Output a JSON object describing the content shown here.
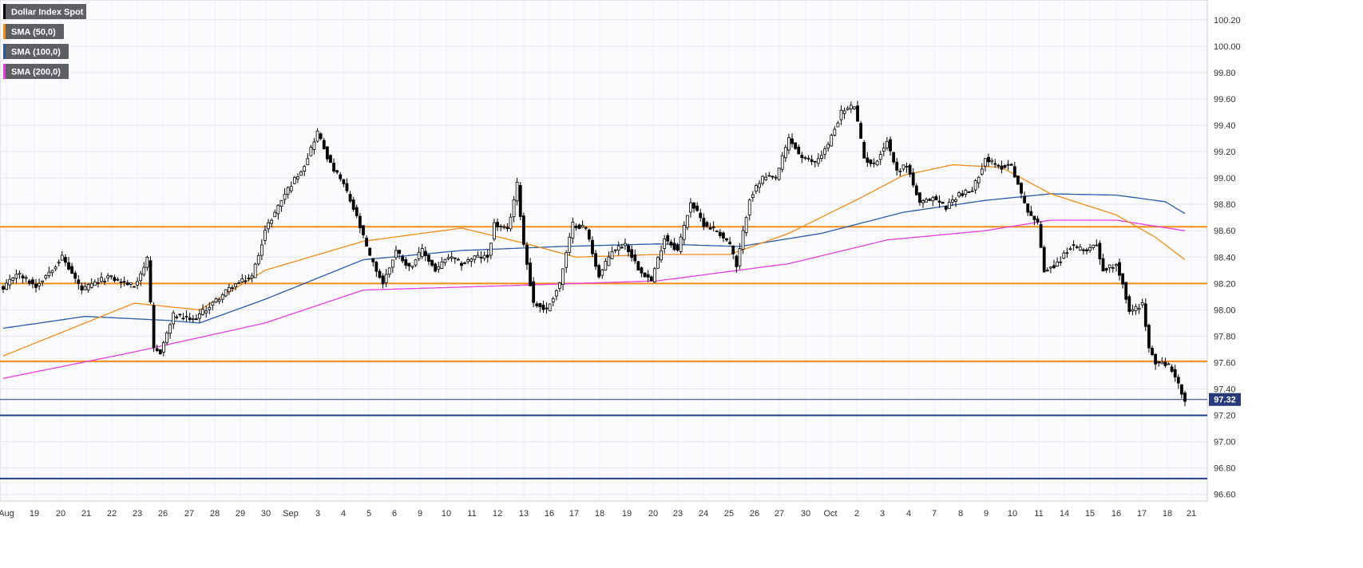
{
  "chart_data": {
    "type": "candlestick",
    "title": "",
    "legend": [
      {
        "label": "Dollar Index Spot",
        "color": "#000000"
      },
      {
        "label": "SMA (50,0)",
        "color": "#f28c18"
      },
      {
        "label": "SMA (100,0)",
        "color": "#2a5ba8"
      },
      {
        "label": "SMA (200,0)",
        "color": "#e83ee0"
      }
    ],
    "legend_position": "top-left",
    "grid": true,
    "ylim": [
      96.55,
      100.35
    ],
    "y_ticks": [
      "100.20",
      "100.00",
      "99.80",
      "99.60",
      "99.40",
      "99.20",
      "99.00",
      "98.80",
      "98.60",
      "98.40",
      "98.20",
      "98.00",
      "97.80",
      "97.60",
      "97.40",
      "97.20",
      "97.00",
      "96.80",
      "96.60"
    ],
    "x_ticks": [
      "Aug",
      "19",
      "20",
      "21",
      "22",
      "23",
      "26",
      "27",
      "28",
      "29",
      "30",
      "Sep",
      "3",
      "4",
      "5",
      "6",
      "9",
      "10",
      "11",
      "12",
      "13",
      "16",
      "17",
      "18",
      "19",
      "20",
      "23",
      "24",
      "25",
      "26",
      "27",
      "30",
      "Oct",
      "2",
      "3",
      "4",
      "7",
      "8",
      "9",
      "10",
      "11",
      "14",
      "15",
      "16",
      "17",
      "18",
      "21"
    ],
    "last_price": "97.32",
    "last_price_color": "#283a7a",
    "horizontal_levels": [
      {
        "value": 98.63,
        "color": "#f28c18"
      },
      {
        "value": 98.2,
        "color": "#f28c18"
      },
      {
        "value": 97.61,
        "color": "#f28c18"
      },
      {
        "value": 97.2,
        "color": "#1f3f8f"
      },
      {
        "value": 96.72,
        "color": "#1f3f8f"
      }
    ],
    "anchors": [
      {
        "i": 0,
        "v": 98.15
      },
      {
        "i": 4,
        "v": 98.28
      },
      {
        "i": 10,
        "v": 98.18
      },
      {
        "i": 18,
        "v": 98.4
      },
      {
        "i": 24,
        "v": 98.15
      },
      {
        "i": 32,
        "v": 98.25
      },
      {
        "i": 40,
        "v": 98.18
      },
      {
        "i": 44,
        "v": 98.38
      },
      {
        "i": 46,
        "v": 97.7
      },
      {
        "i": 48,
        "v": 97.68
      },
      {
        "i": 52,
        "v": 97.96
      },
      {
        "i": 58,
        "v": 97.92
      },
      {
        "i": 64,
        "v": 98.05
      },
      {
        "i": 70,
        "v": 98.18
      },
      {
        "i": 76,
        "v": 98.25
      },
      {
        "i": 80,
        "v": 98.6
      },
      {
        "i": 86,
        "v": 98.88
      },
      {
        "i": 92,
        "v": 99.1
      },
      {
        "i": 96,
        "v": 99.35
      },
      {
        "i": 100,
        "v": 99.1
      },
      {
        "i": 104,
        "v": 98.95
      },
      {
        "i": 108,
        "v": 98.7
      },
      {
        "i": 112,
        "v": 98.4
      },
      {
        "i": 116,
        "v": 98.2
      },
      {
        "i": 120,
        "v": 98.45
      },
      {
        "i": 124,
        "v": 98.32
      },
      {
        "i": 128,
        "v": 98.45
      },
      {
        "i": 132,
        "v": 98.3
      },
      {
        "i": 136,
        "v": 98.4
      },
      {
        "i": 140,
        "v": 98.35
      },
      {
        "i": 144,
        "v": 98.4
      },
      {
        "i": 148,
        "v": 98.4
      },
      {
        "i": 150,
        "v": 98.65
      },
      {
        "i": 154,
        "v": 98.6
      },
      {
        "i": 157,
        "v": 98.95
      },
      {
        "i": 159,
        "v": 98.5
      },
      {
        "i": 162,
        "v": 98.05
      },
      {
        "i": 166,
        "v": 98.0
      },
      {
        "i": 170,
        "v": 98.2
      },
      {
        "i": 174,
        "v": 98.65
      },
      {
        "i": 178,
        "v": 98.62
      },
      {
        "i": 182,
        "v": 98.25
      },
      {
        "i": 186,
        "v": 98.45
      },
      {
        "i": 190,
        "v": 98.5
      },
      {
        "i": 194,
        "v": 98.32
      },
      {
        "i": 198,
        "v": 98.22
      },
      {
        "i": 202,
        "v": 98.55
      },
      {
        "i": 206,
        "v": 98.45
      },
      {
        "i": 210,
        "v": 98.82
      },
      {
        "i": 214,
        "v": 98.65
      },
      {
        "i": 218,
        "v": 98.6
      },
      {
        "i": 222,
        "v": 98.5
      },
      {
        "i": 224,
        "v": 98.32
      },
      {
        "i": 228,
        "v": 98.85
      },
      {
        "i": 232,
        "v": 99.0
      },
      {
        "i": 236,
        "v": 99.0
      },
      {
        "i": 240,
        "v": 99.3
      },
      {
        "i": 244,
        "v": 99.15
      },
      {
        "i": 248,
        "v": 99.12
      },
      {
        "i": 252,
        "v": 99.25
      },
      {
        "i": 256,
        "v": 99.5
      },
      {
        "i": 260,
        "v": 99.55
      },
      {
        "i": 263,
        "v": 99.15
      },
      {
        "i": 266,
        "v": 99.1
      },
      {
        "i": 270,
        "v": 99.28
      },
      {
        "i": 273,
        "v": 99.05
      },
      {
        "i": 276,
        "v": 99.1
      },
      {
        "i": 280,
        "v": 98.8
      },
      {
        "i": 284,
        "v": 98.85
      },
      {
        "i": 288,
        "v": 98.78
      },
      {
        "i": 292,
        "v": 98.88
      },
      {
        "i": 296,
        "v": 98.9
      },
      {
        "i": 300,
        "v": 99.15
      },
      {
        "i": 304,
        "v": 99.08
      },
      {
        "i": 308,
        "v": 99.1
      },
      {
        "i": 310,
        "v": 98.95
      },
      {
        "i": 312,
        "v": 98.8
      },
      {
        "i": 314,
        "v": 98.72
      },
      {
        "i": 316,
        "v": 98.65
      },
      {
        "i": 318,
        "v": 98.3
      },
      {
        "i": 322,
        "v": 98.35
      },
      {
        "i": 326,
        "v": 98.48
      },
      {
        "i": 330,
        "v": 98.45
      },
      {
        "i": 334,
        "v": 98.5
      },
      {
        "i": 336,
        "v": 98.3
      },
      {
        "i": 340,
        "v": 98.35
      },
      {
        "i": 342,
        "v": 98.2
      },
      {
        "i": 344,
        "v": 97.98
      },
      {
        "i": 348,
        "v": 98.05
      },
      {
        "i": 350,
        "v": 97.7
      },
      {
        "i": 352,
        "v": 97.6
      },
      {
        "i": 356,
        "v": 97.58
      },
      {
        "i": 358,
        "v": 97.5
      },
      {
        "i": 361,
        "v": 97.3
      }
    ],
    "sma50": [
      {
        "i": 0,
        "v": 97.65
      },
      {
        "i": 20,
        "v": 97.85
      },
      {
        "i": 40,
        "v": 98.05
      },
      {
        "i": 60,
        "v": 98.0
      },
      {
        "i": 80,
        "v": 98.3
      },
      {
        "i": 110,
        "v": 98.52
      },
      {
        "i": 140,
        "v": 98.62
      },
      {
        "i": 160,
        "v": 98.5
      },
      {
        "i": 175,
        "v": 98.4
      },
      {
        "i": 200,
        "v": 98.42
      },
      {
        "i": 222,
        "v": 98.42
      },
      {
        "i": 240,
        "v": 98.58
      },
      {
        "i": 262,
        "v": 98.85
      },
      {
        "i": 275,
        "v": 99.02
      },
      {
        "i": 290,
        "v": 99.1
      },
      {
        "i": 305,
        "v": 99.08
      },
      {
        "i": 320,
        "v": 98.88
      },
      {
        "i": 340,
        "v": 98.72
      },
      {
        "i": 352,
        "v": 98.55
      },
      {
        "i": 361,
        "v": 98.38
      }
    ],
    "sma100": [
      {
        "i": 0,
        "v": 97.86
      },
      {
        "i": 25,
        "v": 97.95
      },
      {
        "i": 50,
        "v": 97.92
      },
      {
        "i": 60,
        "v": 97.9
      },
      {
        "i": 80,
        "v": 98.08
      },
      {
        "i": 110,
        "v": 98.38
      },
      {
        "i": 140,
        "v": 98.45
      },
      {
        "i": 170,
        "v": 98.48
      },
      {
        "i": 200,
        "v": 98.5
      },
      {
        "i": 225,
        "v": 98.48
      },
      {
        "i": 250,
        "v": 98.58
      },
      {
        "i": 275,
        "v": 98.74
      },
      {
        "i": 300,
        "v": 98.83
      },
      {
        "i": 320,
        "v": 98.88
      },
      {
        "i": 340,
        "v": 98.87
      },
      {
        "i": 355,
        "v": 98.82
      },
      {
        "i": 361,
        "v": 98.73
      }
    ],
    "sma200": [
      {
        "i": 0,
        "v": 97.48
      },
      {
        "i": 40,
        "v": 97.68
      },
      {
        "i": 80,
        "v": 97.9
      },
      {
        "i": 110,
        "v": 98.15
      },
      {
        "i": 150,
        "v": 98.18
      },
      {
        "i": 200,
        "v": 98.22
      },
      {
        "i": 240,
        "v": 98.35
      },
      {
        "i": 270,
        "v": 98.53
      },
      {
        "i": 300,
        "v": 98.6
      },
      {
        "i": 320,
        "v": 98.68
      },
      {
        "i": 340,
        "v": 98.68
      },
      {
        "i": 361,
        "v": 98.6
      }
    ]
  }
}
